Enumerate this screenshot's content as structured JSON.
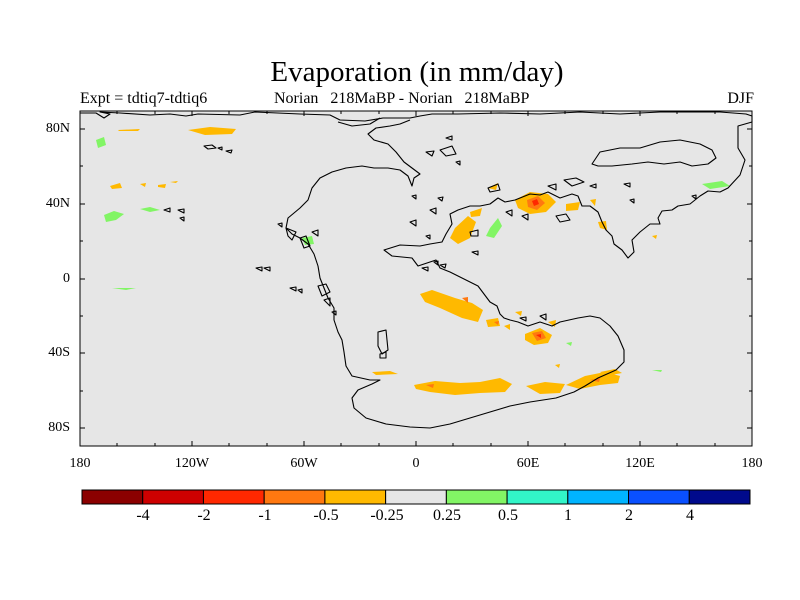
{
  "title": "Evaporation (in mm/day)",
  "subtitle_left": "Expt = tdtiq7-tdtiq6",
  "subtitle_center": "Norian   218MaBP - Norian   218MaBP",
  "subtitle_right": "DJF",
  "lat_labels": [
    "80N",
    "40N",
    "0",
    "40S",
    "80S"
  ],
  "lon_labels": [
    "180",
    "120W",
    "60W",
    "0",
    "60E",
    "120E",
    "180"
  ],
  "colorbar": {
    "colors": [
      "#8b0000",
      "#cd0000",
      "#ff2800",
      "#ff7810",
      "#ffb900",
      "#e6e6e6",
      "#82f565",
      "#32f5c8",
      "#00b4ff",
      "#0a50ff",
      "#000a8c"
    ],
    "labels": [
      "-4",
      "-2",
      "-1",
      "-0.5",
      "-0.25",
      "0.25",
      "0.5",
      "1",
      "2",
      "4"
    ]
  },
  "colors": {
    "ocean_background": "#e6e6e6",
    "coastline": "#000000",
    "negative_light": "#ffb900",
    "negative_mid": "#ff7810",
    "negative_strong": "#ff2800",
    "positive_light": "#82f565"
  }
}
